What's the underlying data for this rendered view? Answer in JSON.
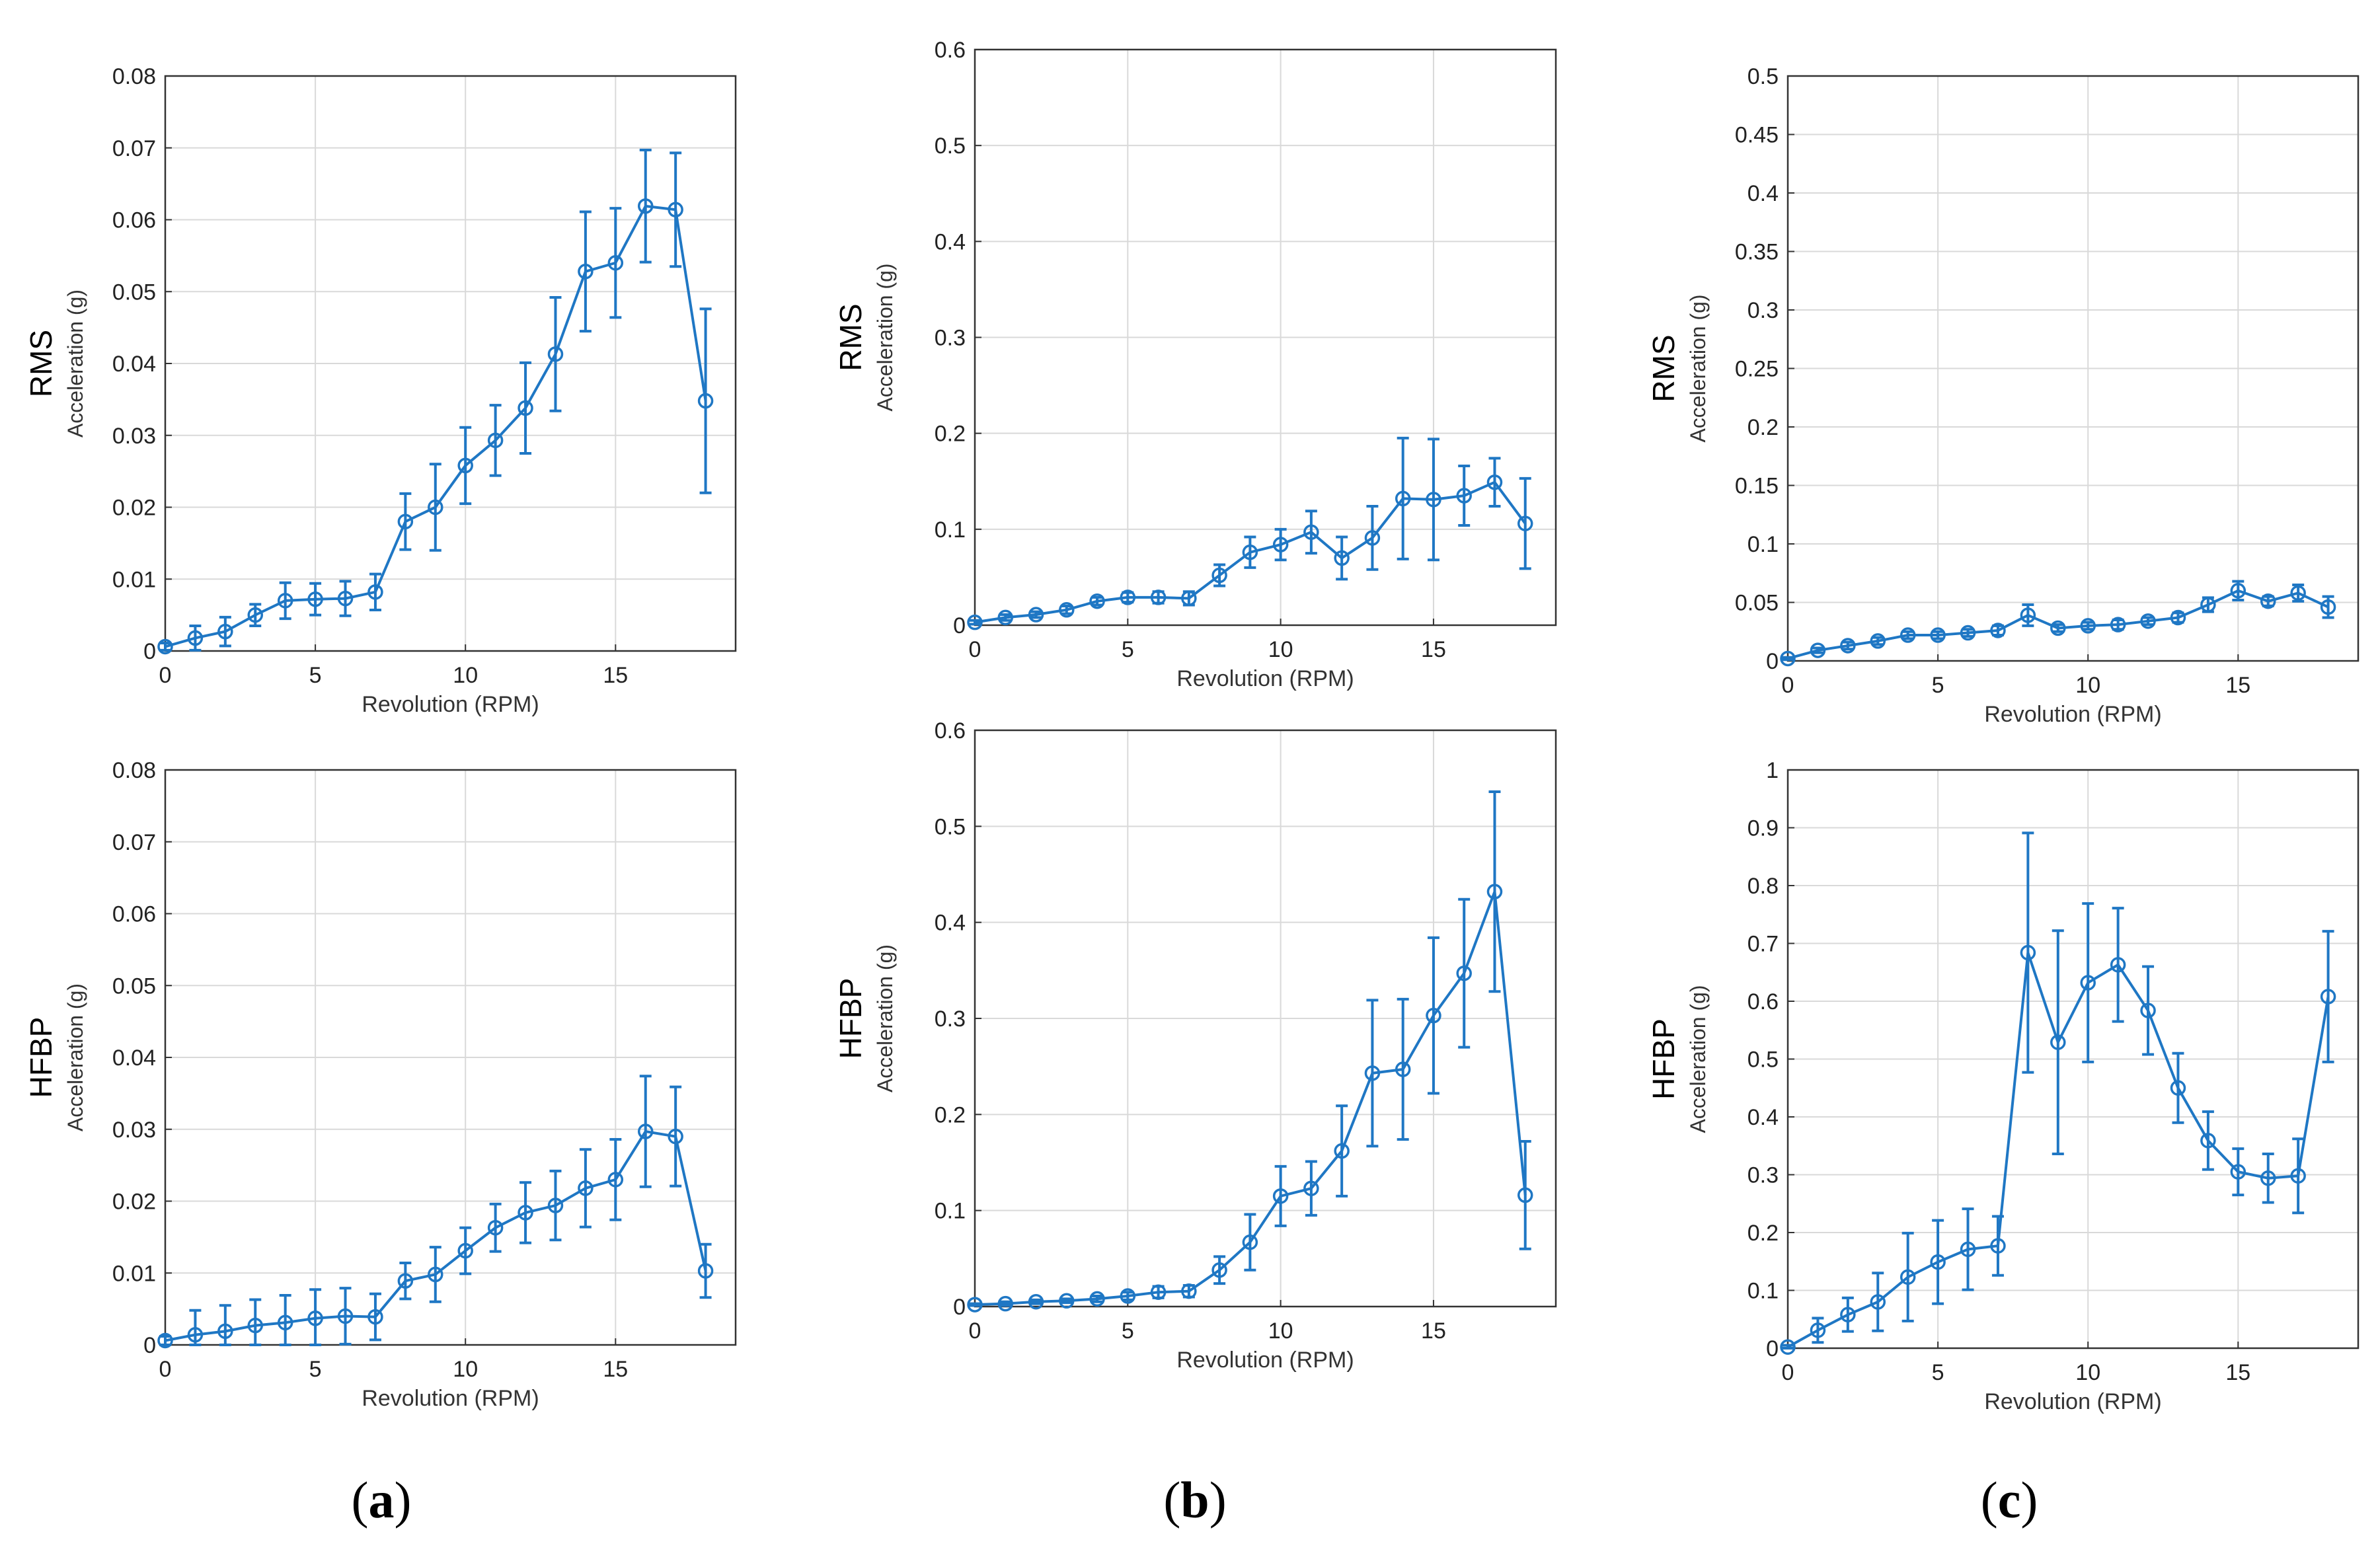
{
  "figure_labels": {
    "a": {
      "open": "(",
      "letter": "a",
      "close": ")"
    },
    "b": {
      "open": "(",
      "letter": "b",
      "close": ")"
    },
    "c": {
      "open": "(",
      "letter": "c",
      "close": ")"
    }
  },
  "colors": {
    "series": "#1f77c4",
    "grid": "#d9d9d9",
    "axis": "#333333"
  },
  "chart_data": [
    {
      "id": "a-rms",
      "type": "line",
      "row_label": "RMS",
      "title": "",
      "xlabel": "Revolution (RPM)",
      "ylabel": "Acceleration (g)",
      "xlim": [
        0,
        19
      ],
      "ylim": [
        0,
        0.08
      ],
      "xticks": [
        0,
        5,
        10,
        15
      ],
      "xtick_labels": [
        "0",
        "5",
        "10",
        "15"
      ],
      "yticks": [
        0,
        0.01,
        0.02,
        0.03,
        0.04,
        0.05,
        0.06,
        0.07,
        0.08
      ],
      "ytick_labels": [
        "0",
        "0.01",
        "0.02",
        "0.03",
        "0.04",
        "0.05",
        "0.06",
        "0.07",
        "0.08"
      ],
      "grid": true,
      "marker": "circle",
      "errorbars": true,
      "x": [
        0,
        1,
        2,
        3,
        4,
        5,
        6,
        7,
        8,
        9,
        10,
        11,
        12,
        13,
        14,
        15,
        16,
        17,
        18
      ],
      "y": [
        0.0006,
        0.0018,
        0.0027,
        0.005,
        0.007,
        0.0072,
        0.0073,
        0.0082,
        0.018,
        0.02,
        0.0258,
        0.0293,
        0.0338,
        0.0413,
        0.0528,
        0.054,
        0.0619,
        0.0614,
        0.0348
      ],
      "err": [
        0.0005,
        0.0017,
        0.002,
        0.0015,
        0.0025,
        0.0022,
        0.0024,
        0.0025,
        0.0039,
        0.006,
        0.0053,
        0.0049,
        0.0063,
        0.0079,
        0.0083,
        0.0076,
        0.0078,
        0.0079,
        0.0128
      ]
    },
    {
      "id": "a-hfbp",
      "type": "line",
      "row_label": "HFBP",
      "title": "",
      "xlabel": "Revolution (RPM)",
      "ylabel": "Acceleration (g)",
      "xlim": [
        0,
        19
      ],
      "ylim": [
        0,
        0.08
      ],
      "xticks": [
        0,
        5,
        10,
        15
      ],
      "xtick_labels": [
        "0",
        "5",
        "10",
        "15"
      ],
      "yticks": [
        0,
        0.01,
        0.02,
        0.03,
        0.04,
        0.05,
        0.06,
        0.07,
        0.08
      ],
      "ytick_labels": [
        "0",
        "0.01",
        "0.02",
        "0.03",
        "0.04",
        "0.05",
        "0.06",
        "0.07",
        "0.08"
      ],
      "grid": true,
      "marker": "circle",
      "errorbars": true,
      "x": [
        0,
        1,
        2,
        3,
        4,
        5,
        6,
        7,
        8,
        9,
        10,
        11,
        12,
        13,
        14,
        15,
        16,
        17,
        18
      ],
      "y": [
        0.0006,
        0.0014,
        0.0019,
        0.0027,
        0.0031,
        0.0037,
        0.004,
        0.0039,
        0.0089,
        0.0098,
        0.0131,
        0.0163,
        0.0184,
        0.0194,
        0.0218,
        0.023,
        0.0297,
        0.029,
        0.0103
      ],
      "err": [
        0.0006,
        0.0034,
        0.0036,
        0.0036,
        0.0038,
        0.004,
        0.0039,
        0.0032,
        0.0025,
        0.0038,
        0.0032,
        0.0033,
        0.0042,
        0.0048,
        0.0054,
        0.0056,
        0.0077,
        0.0069,
        0.0037
      ]
    },
    {
      "id": "b-rms",
      "type": "line",
      "row_label": "RMS",
      "title": "",
      "xlabel": "Revolution (RPM)",
      "ylabel": "Acceleration (g)",
      "xlim": [
        0,
        19
      ],
      "ylim": [
        0,
        0.6
      ],
      "xticks": [
        0,
        5,
        10,
        15
      ],
      "xtick_labels": [
        "0",
        "5",
        "10",
        "15"
      ],
      "yticks": [
        0,
        0.1,
        0.2,
        0.3,
        0.4,
        0.5,
        0.6
      ],
      "ytick_labels": [
        "0",
        "0.1",
        "0.2",
        "0.3",
        "0.4",
        "0.5",
        "0.6"
      ],
      "grid": true,
      "marker": "circle",
      "errorbars": true,
      "x": [
        0,
        1,
        2,
        3,
        4,
        5,
        6,
        7,
        8,
        9,
        10,
        11,
        12,
        13,
        14,
        15,
        16,
        17,
        18
      ],
      "y": [
        0.003,
        0.008,
        0.011,
        0.016,
        0.025,
        0.029,
        0.029,
        0.028,
        0.052,
        0.076,
        0.084,
        0.097,
        0.07,
        0.091,
        0.132,
        0.131,
        0.135,
        0.149,
        0.106
      ],
      "err": [
        0.002,
        0.003,
        0.003,
        0.004,
        0.004,
        0.005,
        0.006,
        0.007,
        0.011,
        0.016,
        0.016,
        0.022,
        0.022,
        0.033,
        0.063,
        0.063,
        0.031,
        0.025,
        0.047
      ]
    },
    {
      "id": "b-hfbp",
      "type": "line",
      "row_label": "HFBP",
      "title": "",
      "xlabel": "Revolution (RPM)",
      "ylabel": "Acceleration (g)",
      "xlim": [
        0,
        19
      ],
      "ylim": [
        0,
        0.6
      ],
      "xticks": [
        0,
        5,
        10,
        15
      ],
      "xtick_labels": [
        "0",
        "5",
        "10",
        "15"
      ],
      "yticks": [
        0,
        0.1,
        0.2,
        0.3,
        0.4,
        0.5,
        0.6
      ],
      "ytick_labels": [
        "0",
        "0.1",
        "0.2",
        "0.3",
        "0.4",
        "0.5",
        "0.6"
      ],
      "grid": true,
      "marker": "circle",
      "errorbars": true,
      "x": [
        0,
        1,
        2,
        3,
        4,
        5,
        6,
        7,
        8,
        9,
        10,
        11,
        12,
        13,
        14,
        15,
        16,
        17,
        18
      ],
      "y": [
        0.002,
        0.003,
        0.005,
        0.006,
        0.008,
        0.011,
        0.015,
        0.016,
        0.038,
        0.067,
        0.115,
        0.123,
        0.162,
        0.243,
        0.247,
        0.303,
        0.347,
        0.432,
        0.116
      ],
      "err": [
        0.001,
        0.002,
        0.002,
        0.002,
        0.003,
        0.004,
        0.006,
        0.006,
        0.014,
        0.029,
        0.031,
        0.028,
        0.047,
        0.076,
        0.073,
        0.081,
        0.077,
        0.104,
        0.056
      ]
    },
    {
      "id": "c-rms",
      "type": "line",
      "row_label": "RMS",
      "title": "",
      "xlabel": "Revolution (RPM)",
      "ylabel": "Acceleration (g)",
      "xlim": [
        0,
        19
      ],
      "ylim": [
        0,
        0.5
      ],
      "xticks": [
        0,
        5,
        10,
        15
      ],
      "xtick_labels": [
        "0",
        "5",
        "10",
        "15"
      ],
      "yticks": [
        0,
        0.05,
        0.1,
        0.15,
        0.2,
        0.25,
        0.3,
        0.35,
        0.4,
        0.45,
        0.5
      ],
      "ytick_labels": [
        "0",
        "0.05",
        "0.1",
        "0.15",
        "0.2",
        "0.25",
        "0.3",
        "0.35",
        "0.4",
        "0.45",
        "0.5"
      ],
      "grid": true,
      "marker": "circle",
      "errorbars": true,
      "x": [
        0,
        1,
        2,
        3,
        4,
        5,
        6,
        7,
        8,
        9,
        10,
        11,
        12,
        13,
        14,
        15,
        16,
        17,
        18
      ],
      "y": [
        0.002,
        0.009,
        0.013,
        0.017,
        0.022,
        0.022,
        0.024,
        0.026,
        0.039,
        0.028,
        0.03,
        0.031,
        0.034,
        0.037,
        0.048,
        0.06,
        0.051,
        0.058,
        0.046
      ],
      "err": [
        0.001,
        0.002,
        0.003,
        0.003,
        0.003,
        0.003,
        0.003,
        0.004,
        0.009,
        0.003,
        0.003,
        0.004,
        0.003,
        0.004,
        0.006,
        0.008,
        0.004,
        0.007,
        0.009
      ]
    },
    {
      "id": "c-hfbp",
      "type": "line",
      "row_label": "HFBP",
      "title": "",
      "xlabel": "Revolution (RPM)",
      "ylabel": "Acceleration (g)",
      "xlim": [
        0,
        19
      ],
      "ylim": [
        0,
        1
      ],
      "xticks": [
        0,
        5,
        10,
        15
      ],
      "xtick_labels": [
        "0",
        "5",
        "10",
        "15"
      ],
      "yticks": [
        0,
        0.1,
        0.2,
        0.3,
        0.4,
        0.5,
        0.6,
        0.7,
        0.8,
        0.9,
        1
      ],
      "ytick_labels": [
        "0",
        "0.1",
        "0.2",
        "0.3",
        "0.4",
        "0.5",
        "0.6",
        "0.7",
        "0.8",
        "0.9",
        "1"
      ],
      "grid": true,
      "marker": "circle",
      "errorbars": true,
      "x": [
        0,
        1,
        2,
        3,
        4,
        5,
        6,
        7,
        8,
        9,
        10,
        11,
        12,
        13,
        14,
        15,
        16,
        17,
        18
      ],
      "y": [
        0.002,
        0.031,
        0.058,
        0.08,
        0.123,
        0.149,
        0.171,
        0.177,
        0.684,
        0.529,
        0.632,
        0.663,
        0.584,
        0.45,
        0.359,
        0.305,
        0.294,
        0.298,
        0.608
      ],
      "err": [
        0.003,
        0.021,
        0.029,
        0.05,
        0.076,
        0.072,
        0.07,
        0.051,
        0.207,
        0.193,
        0.137,
        0.098,
        0.076,
        0.06,
        0.05,
        0.04,
        0.042,
        0.064,
        0.113
      ]
    }
  ]
}
